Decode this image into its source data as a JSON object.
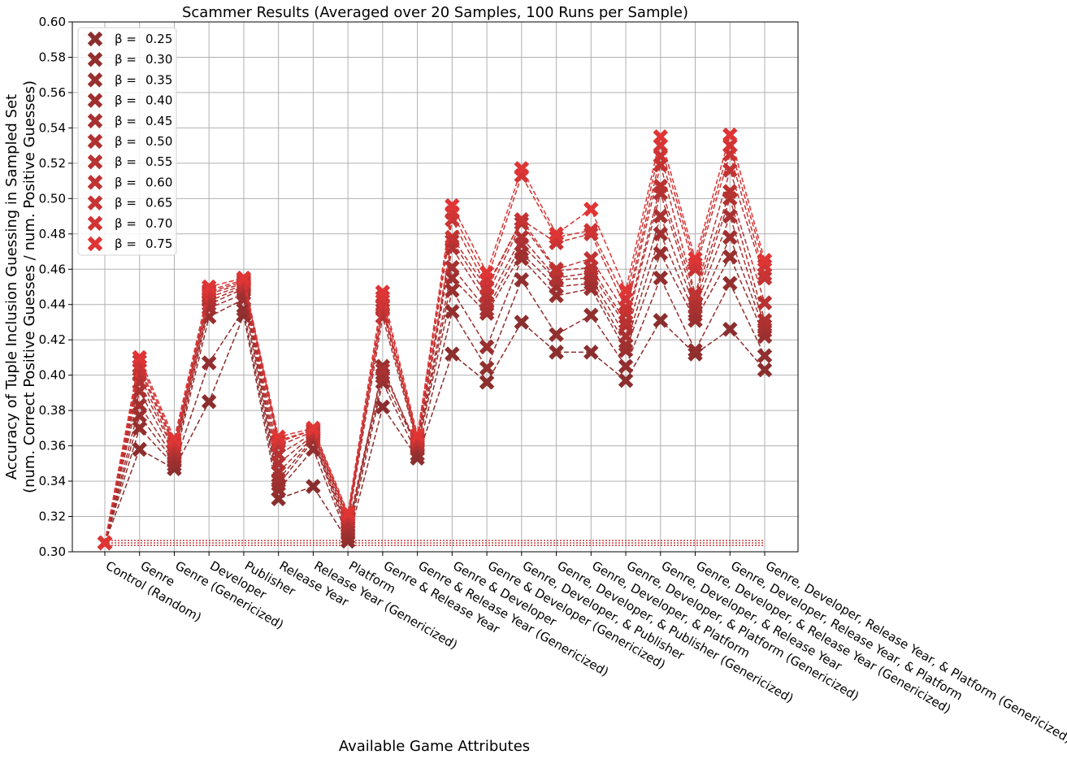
{
  "chart_data": {
    "type": "line",
    "title": "Scammer Results (Averaged over 20 Samples, 100 Runs per Sample)",
    "xlabel": "Available Game Attributes",
    "ylabel_line1": "Accuracy of Tuple Inclusion Guessing in Sampled Set",
    "ylabel_line2": "(num. Correct Positive Guesses / num. Positive Guesses)",
    "ylim": [
      0.3,
      0.6
    ],
    "yticks": [
      "0.30",
      "0.32",
      "0.34",
      "0.36",
      "0.38",
      "0.40",
      "0.42",
      "0.44",
      "0.46",
      "0.48",
      "0.50",
      "0.52",
      "0.54",
      "0.56",
      "0.58",
      "0.60"
    ],
    "grid": true,
    "legend_position": "top-left",
    "marker": "X",
    "line_style": "dashed",
    "baseline_value": 0.305,
    "categories": [
      "Control (Random)",
      "Genre",
      "Genre (Genericized)",
      "Developer",
      "Publisher",
      "Release Year",
      "Release Year (Genericized)",
      "Platform",
      "Genre & Release Year",
      "Genre & Release Year (Genericized)",
      "Genre & Developer",
      "Genre & Developer (Genericized)",
      "Genre, Developer, & Publisher",
      "Genre, Developer, & Publisher (Genericized)",
      "Genre, Developer, & Platform",
      "Genre, Developer, & Platform (Genericized)",
      "Genre, Developer, & Release Year",
      "Genre, Developer, & Release Year (Genericized)",
      "Genre, Developer, Release Year, & Platform",
      "Genre, Developer, Release Year, & Platform (Genericized)"
    ],
    "series": [
      {
        "name": "β = 0.25",
        "legend_prefix": "β =",
        "legend_value": "0.25",
        "color": "#8b2e2e",
        "values": [
          0.305,
          0.358,
          0.347,
          0.385,
          0.434,
          0.33,
          0.337,
          0.306,
          0.382,
          0.353,
          0.412,
          0.396,
          0.43,
          0.413,
          0.413,
          0.397,
          0.431,
          0.412,
          0.426,
          0.403
        ]
      },
      {
        "name": "β = 0.30",
        "legend_prefix": "β =",
        "legend_value": "0.30",
        "color": "#922f2f",
        "values": [
          0.305,
          0.37,
          0.349,
          0.407,
          0.437,
          0.335,
          0.358,
          0.308,
          0.396,
          0.355,
          0.436,
          0.404,
          0.454,
          0.423,
          0.434,
          0.405,
          0.455,
          0.414,
          0.452,
          0.411
        ]
      },
      {
        "name": "β = 0.35",
        "legend_prefix": "β =",
        "legend_value": "0.35",
        "color": "#992f2f",
        "values": [
          0.305,
          0.377,
          0.351,
          0.433,
          0.443,
          0.338,
          0.363,
          0.31,
          0.405,
          0.358,
          0.448,
          0.416,
          0.466,
          0.445,
          0.449,
          0.414,
          0.469,
          0.431,
          0.467,
          0.422
        ]
      },
      {
        "name": "β = 0.40",
        "legend_prefix": "β =",
        "legend_value": "0.40",
        "color": "#a03030",
        "values": [
          0.305,
          0.383,
          0.353,
          0.438,
          0.446,
          0.341,
          0.364,
          0.312,
          0.399,
          0.359,
          0.455,
          0.435,
          0.469,
          0.45,
          0.452,
          0.417,
          0.48,
          0.434,
          0.478,
          0.425
        ]
      },
      {
        "name": "β = 0.45",
        "legend_prefix": "β =",
        "legend_value": "0.45",
        "color": "#a83131",
        "values": [
          0.305,
          0.391,
          0.355,
          0.44,
          0.449,
          0.345,
          0.365,
          0.314,
          0.403,
          0.36,
          0.461,
          0.437,
          0.474,
          0.454,
          0.455,
          0.422,
          0.49,
          0.438,
          0.49,
          0.428
        ]
      },
      {
        "name": "β = 0.50",
        "legend_prefix": "β =",
        "legend_value": "0.50",
        "color": "#b03131",
        "values": [
          0.305,
          0.396,
          0.357,
          0.442,
          0.45,
          0.35,
          0.366,
          0.316,
          0.433,
          0.361,
          0.472,
          0.441,
          0.478,
          0.455,
          0.458,
          0.428,
          0.503,
          0.441,
          0.5,
          0.431
        ]
      },
      {
        "name": "β = 0.55",
        "legend_prefix": "β =",
        "legend_value": "0.55",
        "color": "#b83232",
        "values": [
          0.305,
          0.4,
          0.358,
          0.444,
          0.451,
          0.355,
          0.367,
          0.318,
          0.437,
          0.362,
          0.476,
          0.445,
          0.486,
          0.459,
          0.461,
          0.43,
          0.507,
          0.445,
          0.504,
          0.441
        ]
      },
      {
        "name": "β = 0.60",
        "legend_prefix": "β =",
        "legend_value": "0.60",
        "color": "#c03333",
        "values": [
          0.305,
          0.403,
          0.36,
          0.446,
          0.452,
          0.36,
          0.368,
          0.319,
          0.439,
          0.363,
          0.478,
          0.449,
          0.488,
          0.46,
          0.466,
          0.435,
          0.519,
          0.446,
          0.516,
          0.455
        ]
      },
      {
        "name": "β = 0.65",
        "legend_prefix": "β =",
        "legend_value": "0.65",
        "color": "#c83333",
        "values": [
          0.305,
          0.405,
          0.361,
          0.447,
          0.453,
          0.362,
          0.369,
          0.32,
          0.44,
          0.364,
          0.488,
          0.45,
          0.488,
          0.475,
          0.48,
          0.438,
          0.524,
          0.46,
          0.525,
          0.457
        ]
      },
      {
        "name": "β = 0.70",
        "legend_prefix": "β =",
        "legend_value": "0.70",
        "color": "#d03434",
        "values": [
          0.305,
          0.408,
          0.362,
          0.448,
          0.454,
          0.363,
          0.369,
          0.321,
          0.444,
          0.365,
          0.492,
          0.454,
          0.513,
          0.478,
          0.482,
          0.443,
          0.53,
          0.463,
          0.53,
          0.462
        ]
      },
      {
        "name": "β = 0.75",
        "legend_prefix": "β =",
        "legend_value": "0.75",
        "color": "#e03535",
        "values": [
          0.305,
          0.41,
          0.364,
          0.45,
          0.455,
          0.365,
          0.37,
          0.322,
          0.447,
          0.366,
          0.496,
          0.458,
          0.517,
          0.48,
          0.494,
          0.448,
          0.535,
          0.466,
          0.536,
          0.465
        ]
      }
    ]
  }
}
